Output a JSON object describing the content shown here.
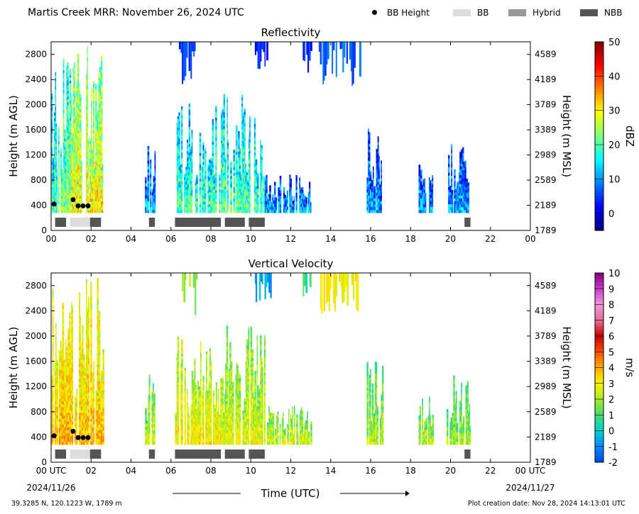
{
  "header": {
    "title": "Martis Creek MRR:  November 26, 2024 UTC",
    "legend": [
      {
        "label": "BB Height",
        "kind": "dot",
        "color": "#000000"
      },
      {
        "label": "BB",
        "kind": "box",
        "color": "#dddddd"
      },
      {
        "label": "Hybrid",
        "kind": "box",
        "color": "#999999"
      },
      {
        "label": "NBB",
        "kind": "box",
        "color": "#555555"
      }
    ]
  },
  "footer": {
    "location": "39.3285 N, 120.1223 W, 1789 m",
    "created": "Plot creation date: Nov 28, 2024 14:13:01 UTC",
    "xaxis_title": "Time (UTC)"
  },
  "chart_data": [
    {
      "type": "heatmap",
      "title": "Reflectivity",
      "ylabel": "Height (m AGL)",
      "y2label": "Height (m MSL)",
      "xlim": [
        0,
        24
      ],
      "ylim": [
        0,
        3000
      ],
      "xticks": [
        "00",
        "02",
        "04",
        "06",
        "08",
        "10",
        "12",
        "14",
        "16",
        "18",
        "20",
        "22",
        "00"
      ],
      "yticks": [
        0,
        400,
        800,
        1200,
        1600,
        2000,
        2400,
        2800
      ],
      "y2ticks": [
        1789,
        2189,
        2589,
        2989,
        3389,
        3789,
        4189,
        4589
      ],
      "colorbar": {
        "label": "dBZ",
        "min": -5,
        "max": 50,
        "ticks": [
          0,
          10,
          20,
          30,
          40,
          50
        ]
      },
      "bb_height_m": [
        {
          "t": 0.15,
          "h": 420
        },
        {
          "t": 1.1,
          "h": 490
        },
        {
          "t": 1.35,
          "h": 390
        },
        {
          "t": 1.6,
          "h": 390
        },
        {
          "t": 1.85,
          "h": 390
        }
      ],
      "bb_bars": [
        {
          "start": 0.2,
          "end": 0.75,
          "type": "NBB"
        },
        {
          "start": 0.95,
          "end": 1.95,
          "type": "BB"
        },
        {
          "start": 1.95,
          "end": 2.5,
          "type": "NBB"
        },
        {
          "start": 4.9,
          "end": 5.2,
          "type": "NBB"
        },
        {
          "start": 6.2,
          "end": 8.5,
          "type": "NBB"
        },
        {
          "start": 8.7,
          "end": 9.7,
          "type": "NBB"
        },
        {
          "start": 9.9,
          "end": 10.7,
          "type": "NBB"
        },
        {
          "start": 20.7,
          "end": 21.0,
          "type": "NBB"
        }
      ],
      "echo_periods": [
        {
          "start": 0.0,
          "end": 0.3,
          "top_m": 2900,
          "level": 12
        },
        {
          "start": 0.3,
          "end": 1.0,
          "top_m": 2750,
          "level": 16
        },
        {
          "start": 1.0,
          "end": 2.6,
          "top_m": 3000,
          "level": 22
        },
        {
          "start": 4.7,
          "end": 5.2,
          "top_m": 1400,
          "level": 5
        },
        {
          "start": 6.2,
          "end": 8.5,
          "top_m": 2050,
          "level": 12
        },
        {
          "start": 8.5,
          "end": 10.7,
          "top_m": 2200,
          "level": 13
        },
        {
          "start": 10.7,
          "end": 13.0,
          "top_m": 900,
          "level": 4
        },
        {
          "start": 15.8,
          "end": 16.6,
          "top_m": 1650,
          "level": 4
        },
        {
          "start": 18.4,
          "end": 19.1,
          "top_m": 1050,
          "level": 4
        },
        {
          "start": 19.8,
          "end": 21.0,
          "top_m": 1400,
          "level": 4
        }
      ],
      "upper_cloud": [
        {
          "start": 6.4,
          "end": 7.3,
          "level": 5
        },
        {
          "start": 10.2,
          "end": 11.0,
          "level": 3
        },
        {
          "start": 12.6,
          "end": 13.0,
          "level": 4
        },
        {
          "start": 13.4,
          "end": 15.5,
          "level": 7
        }
      ]
    },
    {
      "type": "heatmap",
      "title": "Vertical Velocity",
      "ylabel": "Height (m AGL)",
      "y2label": "Height (m MSL)",
      "xlabel": "Time (UTC)",
      "xlim": [
        0,
        24
      ],
      "ylim": [
        0,
        3000
      ],
      "xticks": [
        "00 UTC",
        "02",
        "04",
        "06",
        "08",
        "10",
        "12",
        "14",
        "16",
        "18",
        "20",
        "22",
        "00 UTC"
      ],
      "date_start": "2024/11/26",
      "date_end": "2024/11/27",
      "yticks": [
        0,
        400,
        800,
        1200,
        1600,
        2000,
        2400,
        2800
      ],
      "y2ticks": [
        1789,
        2189,
        2589,
        2989,
        3389,
        3789,
        4189,
        4589
      ],
      "colorbar": {
        "label": "m/s",
        "min": -2,
        "max": 10,
        "ticks": [
          -2,
          -1,
          0,
          1,
          2,
          3,
          4,
          5,
          6,
          7,
          8,
          9,
          10
        ]
      },
      "bb_height_m": [
        {
          "t": 0.15,
          "h": 420
        },
        {
          "t": 1.1,
          "h": 490
        },
        {
          "t": 1.35,
          "h": 390
        },
        {
          "t": 1.6,
          "h": 390
        },
        {
          "t": 1.85,
          "h": 390
        }
      ],
      "bb_bars": [
        {
          "start": 0.2,
          "end": 0.75,
          "type": "NBB"
        },
        {
          "start": 0.95,
          "end": 1.95,
          "type": "BB"
        },
        {
          "start": 1.95,
          "end": 2.5,
          "type": "NBB"
        },
        {
          "start": 4.9,
          "end": 5.2,
          "type": "NBB"
        },
        {
          "start": 6.2,
          "end": 8.5,
          "type": "NBB"
        },
        {
          "start": 8.7,
          "end": 9.7,
          "type": "NBB"
        },
        {
          "start": 9.9,
          "end": 10.7,
          "type": "NBB"
        },
        {
          "start": 20.7,
          "end": 21.0,
          "type": "NBB"
        }
      ],
      "echo_periods": [
        {
          "start": 0.0,
          "end": 0.3,
          "top_m": 2900,
          "level": 2.5
        },
        {
          "start": 0.3,
          "end": 1.0,
          "top_m": 2750,
          "level": 2.8
        },
        {
          "start": 1.0,
          "end": 2.6,
          "top_m": 3000,
          "level": 2.6
        },
        {
          "start": 4.7,
          "end": 5.2,
          "top_m": 1400,
          "level": 1.2
        },
        {
          "start": 6.2,
          "end": 8.5,
          "top_m": 2050,
          "level": 2.0
        },
        {
          "start": 8.5,
          "end": 10.7,
          "top_m": 2200,
          "level": 1.5
        },
        {
          "start": 10.7,
          "end": 13.0,
          "top_m": 900,
          "level": 1.3
        },
        {
          "start": 15.8,
          "end": 16.6,
          "top_m": 1650,
          "level": 1.0
        },
        {
          "start": 18.4,
          "end": 19.1,
          "top_m": 1050,
          "level": 1.0
        },
        {
          "start": 19.8,
          "end": 21.0,
          "top_m": 1400,
          "level": 0.8
        }
      ],
      "upper_cloud": [
        {
          "start": 6.4,
          "end": 7.3,
          "level": 2.0
        },
        {
          "start": 10.2,
          "end": 11.0,
          "level": -0.5
        },
        {
          "start": 12.6,
          "end": 13.0,
          "level": 0.6
        },
        {
          "start": 13.4,
          "end": 15.5,
          "level": 3.0
        }
      ]
    }
  ]
}
